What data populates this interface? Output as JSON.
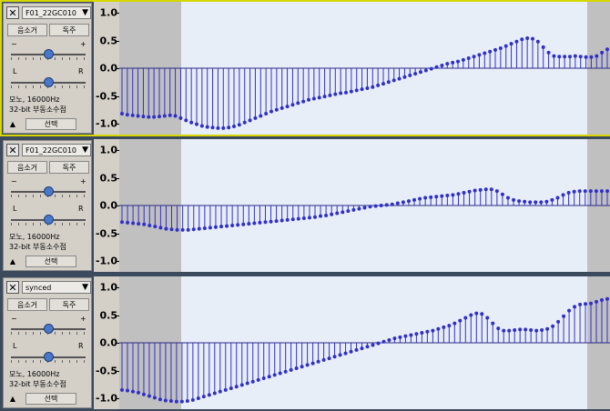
{
  "colors": {
    "selection_bg": "#e8eef8",
    "unselected_bg": "#c0c0c0",
    "waveform": "#3030c8",
    "panel_bg": "#d4d0c8",
    "selected_outline": "#d6d600"
  },
  "icons": {
    "close": "✕",
    "dropdown": "▼",
    "collapse": "▲"
  },
  "tracks": [
    {
      "name": "F01_22GC010",
      "mute_label": "음소거",
      "solo_label": "독주",
      "gain_minus": "−",
      "gain_plus": "+",
      "pan_left": "L",
      "pan_right": "R",
      "info_line1": "모노, 16000Hz",
      "info_line2": "32-bit 부동소수점",
      "select_label": "선택",
      "selected": true,
      "gain": 0.5,
      "pan": 0.5,
      "scale_labels": [
        "1.0",
        "0.5",
        "0.0",
        "-0.5",
        "-1.0"
      ],
      "samples": [
        -0.82,
        -0.84,
        -0.85,
        -0.86,
        -0.87,
        -0.88,
        -0.88,
        -0.87,
        -0.86,
        -0.85,
        -0.86,
        -0.9,
        -0.94,
        -0.98,
        -1.01,
        -1.04,
        -1.06,
        -1.07,
        -1.08,
        -1.08,
        -1.07,
        -1.05,
        -1.02,
        -0.98,
        -0.94,
        -0.9,
        -0.86,
        -0.82,
        -0.78,
        -0.75,
        -0.72,
        -0.69,
        -0.66,
        -0.63,
        -0.6,
        -0.57,
        -0.55,
        -0.53,
        -0.51,
        -0.49,
        -0.47,
        -0.45,
        -0.44,
        -0.42,
        -0.4,
        -0.38,
        -0.36,
        -0.34,
        -0.31,
        -0.28,
        -0.25,
        -0.22,
        -0.19,
        -0.16,
        -0.13,
        -0.1,
        -0.07,
        -0.04,
        -0.01,
        0.02,
        0.05,
        0.08,
        0.1,
        0.12,
        0.15,
        0.18,
        0.21,
        0.24,
        0.27,
        0.3,
        0.33,
        0.36,
        0.4,
        0.44,
        0.48,
        0.52,
        0.54,
        0.53,
        0.48,
        0.38,
        0.28,
        0.22,
        0.21,
        0.21,
        0.21,
        0.22,
        0.21,
        0.2,
        0.2,
        0.22,
        0.28,
        0.34
      ]
    },
    {
      "name": "F01_22GC010",
      "mute_label": "음소거",
      "solo_label": "독주",
      "gain_minus": "−",
      "gain_plus": "+",
      "pan_left": "L",
      "pan_right": "R",
      "info_line1": "모노, 16000Hz",
      "info_line2": "32-bit 부동소수점",
      "select_label": "선택",
      "selected": false,
      "gain": 0.5,
      "pan": 0.5,
      "scale_labels": [
        "1.0",
        "0.5",
        "0.0",
        "-0.5",
        "-1.0"
      ],
      "samples": [
        -0.3,
        -0.31,
        -0.32,
        -0.33,
        -0.34,
        -0.36,
        -0.38,
        -0.4,
        -0.42,
        -0.43,
        -0.44,
        -0.44,
        -0.44,
        -0.43,
        -0.42,
        -0.41,
        -0.4,
        -0.39,
        -0.38,
        -0.37,
        -0.36,
        -0.35,
        -0.34,
        -0.33,
        -0.32,
        -0.31,
        -0.3,
        -0.29,
        -0.28,
        -0.27,
        -0.26,
        -0.25,
        -0.24,
        -0.23,
        -0.22,
        -0.21,
        -0.19,
        -0.18,
        -0.16,
        -0.14,
        -0.12,
        -0.1,
        -0.08,
        -0.06,
        -0.04,
        -0.02,
        -0.01,
        0,
        0.01,
        0.02,
        0.04,
        0.06,
        0.08,
        0.1,
        0.12,
        0.14,
        0.15,
        0.16,
        0.17,
        0.18,
        0.19,
        0.21,
        0.23,
        0.25,
        0.27,
        0.28,
        0.29,
        0.29,
        0.26,
        0.2,
        0.14,
        0.1,
        0.08,
        0.07,
        0.06,
        0.06,
        0.06,
        0.07,
        0.1,
        0.14,
        0.19,
        0.23,
        0.25,
        0.26,
        0.26,
        0.26,
        0.26,
        0.26,
        0.26
      ]
    },
    {
      "name": "synced",
      "mute_label": "음소거",
      "solo_label": "독주",
      "gain_minus": "−",
      "gain_plus": "+",
      "pan_left": "L",
      "pan_right": "R",
      "info_line1": "모노, 16000Hz",
      "info_line2": "32-bit 부동소수점",
      "select_label": "선택",
      "selected": false,
      "gain": 0.5,
      "pan": 0.5,
      "scale_labels": [
        "1.0",
        "0.5",
        "0.0",
        "-0.5",
        "-1.0"
      ],
      "samples": [
        -0.85,
        -0.86,
        -0.88,
        -0.9,
        -0.93,
        -0.96,
        -0.99,
        -1.02,
        -1.04,
        -1.05,
        -1.06,
        -1.06,
        -1.05,
        -1.03,
        -1.0,
        -0.97,
        -0.94,
        -0.91,
        -0.88,
        -0.85,
        -0.82,
        -0.79,
        -0.76,
        -0.73,
        -0.7,
        -0.67,
        -0.64,
        -0.61,
        -0.58,
        -0.55,
        -0.52,
        -0.49,
        -0.46,
        -0.43,
        -0.4,
        -0.37,
        -0.34,
        -0.31,
        -0.28,
        -0.25,
        -0.22,
        -0.19,
        -0.16,
        -0.13,
        -0.1,
        -0.07,
        -0.04,
        -0.01,
        0.02,
        0.05,
        0.08,
        0.1,
        0.12,
        0.14,
        0.16,
        0.18,
        0.2,
        0.22,
        0.25,
        0.28,
        0.31,
        0.35,
        0.4,
        0.45,
        0.5,
        0.53,
        0.52,
        0.45,
        0.35,
        0.26,
        0.22,
        0.22,
        0.23,
        0.24,
        0.24,
        0.23,
        0.22,
        0.23,
        0.25,
        0.3,
        0.38,
        0.48,
        0.58,
        0.65,
        0.69,
        0.7,
        0.71,
        0.74,
        0.77,
        0.79
      ]
    }
  ]
}
